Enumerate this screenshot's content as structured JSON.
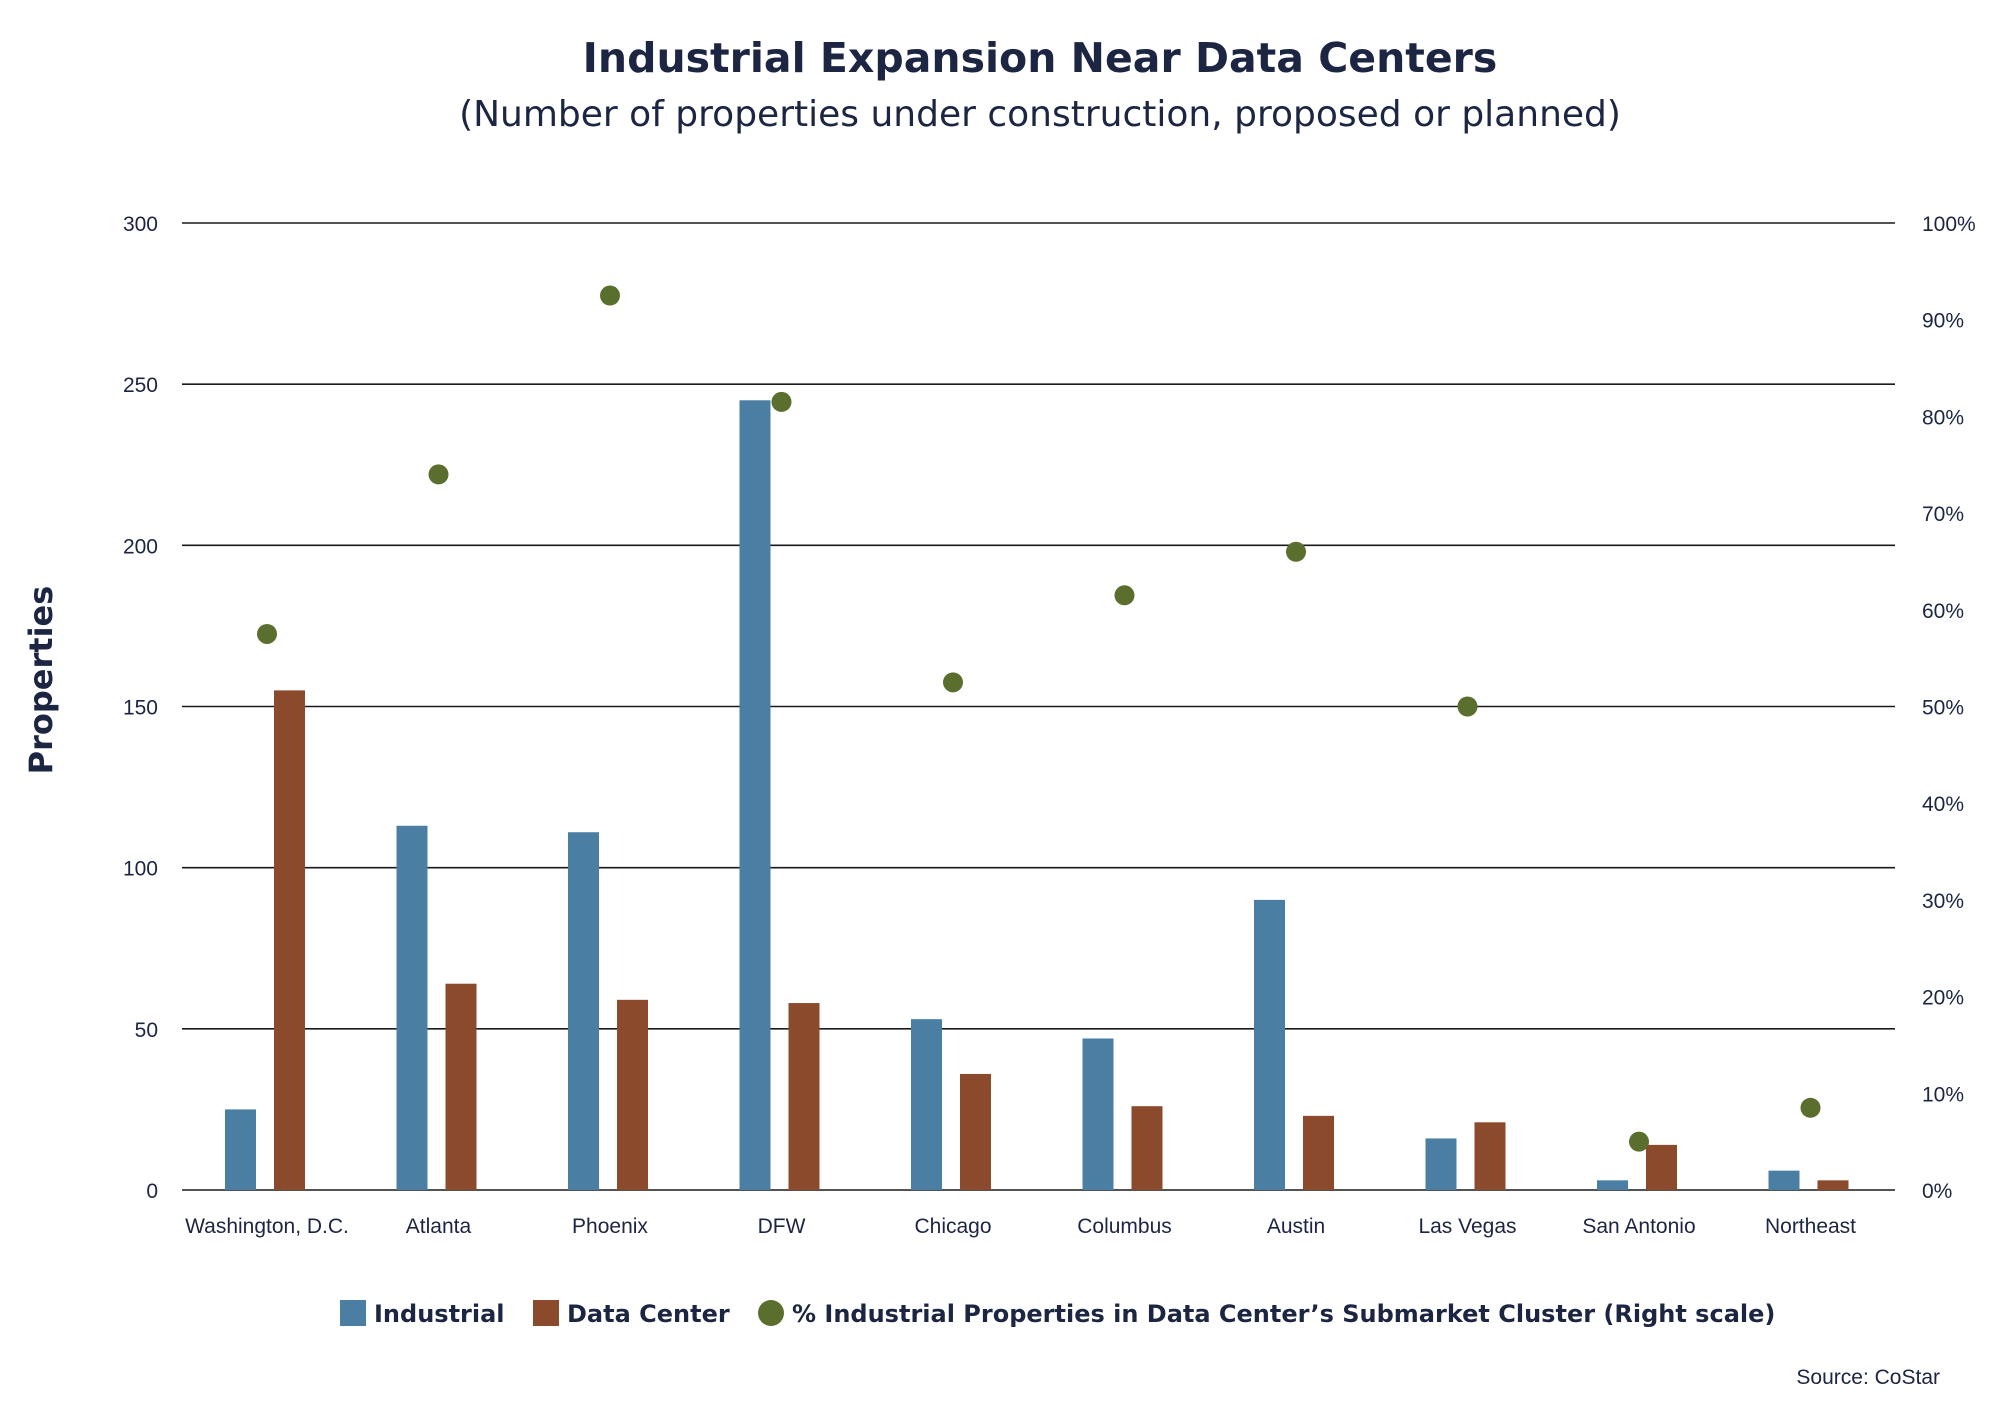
{
  "chart_data": {
    "type": "bar",
    "title": "Industrial Expansion Near Data Centers",
    "subtitle": "(Number of properties under construction, proposed or planned)",
    "ylabel": "Properties",
    "ylim": [
      0,
      300
    ],
    "y_ticks": [
      "0",
      "50",
      "100",
      "150",
      "200",
      "250",
      "300"
    ],
    "y2lim": [
      0,
      100
    ],
    "y2_ticks": [
      "0%",
      "10%",
      "20%",
      "30%",
      "40%",
      "50%",
      "60%",
      "70%",
      "80%",
      "90%",
      "100%"
    ],
    "grid": true,
    "categories": [
      "Washington, D.C.",
      "Atlanta",
      "Phoenix",
      "DFW",
      "Chicago",
      "Columbus",
      "Austin",
      "Las Vegas",
      "San Antonio",
      "Northeast"
    ],
    "series": [
      {
        "name": "Industrial",
        "type": "bar",
        "axis": "left",
        "color": "#4a7fa3",
        "values": [
          25,
          113,
          111,
          245,
          53,
          47,
          90,
          16,
          3,
          6
        ]
      },
      {
        "name": "Data Center",
        "type": "bar",
        "axis": "left",
        "color": "#8b4a2b",
        "values": [
          155,
          64,
          59,
          58,
          36,
          26,
          23,
          21,
          14,
          3
        ]
      },
      {
        "name": "% Industrial Properties in Data Center’s Submarket Cluster (Right scale)",
        "type": "scatter",
        "axis": "right",
        "color": "#5a6e2e",
        "values": [
          57.5,
          74,
          92.5,
          81.5,
          52.5,
          61.5,
          66,
          50,
          5,
          8.5
        ]
      }
    ],
    "legend_position": "bottom",
    "source": "Source: CoStar"
  }
}
